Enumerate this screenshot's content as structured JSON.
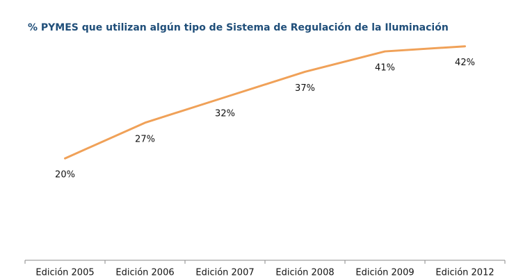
{
  "chart_data": {
    "type": "line",
    "title": "% PYMES que utilizan algún tipo de Sistema de Regulación de la Iluminación",
    "categories": [
      "Edición 2005",
      "Edición 2006",
      "Edición 2007",
      "Edición 2008",
      "Edición 2009",
      "Edición 2012"
    ],
    "series": [
      {
        "name": "% PYMES",
        "color": "#f0a158",
        "values": [
          20,
          27,
          32,
          37,
          41,
          42
        ],
        "value_labels": [
          "20%",
          "27%",
          "32%",
          "37%",
          "41%",
          "42%"
        ]
      }
    ],
    "ylim": [
      0,
      50
    ]
  }
}
